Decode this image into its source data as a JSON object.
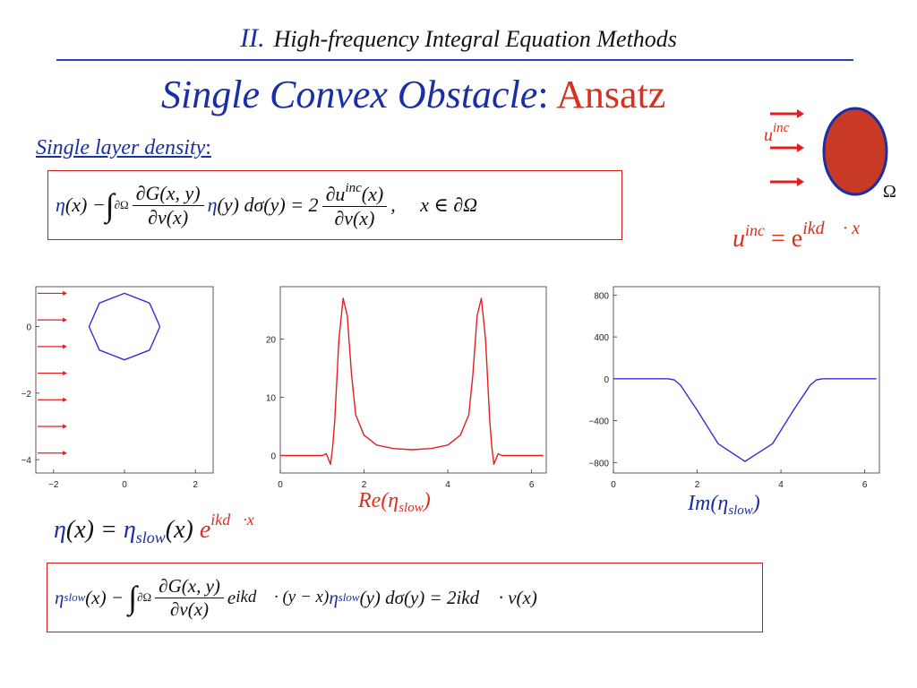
{
  "header": {
    "number": "II.",
    "title": "High-frequency Integral Equation Methods"
  },
  "title": {
    "part1": "Single Convex Obstacle",
    "colon": ":",
    "part2": "Ansatz"
  },
  "subtitle": "Single layer density",
  "subtitle_colon": ":",
  "equation1": {
    "eta": "η",
    "lhs_arg": "(x) − ",
    "int_sub": "∂Ω",
    "frac1_num": "∂G(x, y)",
    "frac1_den": "∂ν(x)",
    "eta2": "η",
    "mid": "(y) dσ(y) = 2",
    "frac2_num": "∂u",
    "frac2_num_sup": "inc",
    "frac2_num_tail": "(x)",
    "frac2_den": "∂ν(x)",
    "tail": ",     x ∈ ∂Ω"
  },
  "diagram": {
    "u_label": "u",
    "u_sup": "inc",
    "omega": "Ω",
    "formula_lhs": "u",
    "formula_lhs_sup": "inc",
    "formula_eq": " = e",
    "formula_exp": "ikd⃗ · x",
    "obstacle_fill": "#c83a25",
    "obstacle_stroke": "#1a2fa6"
  },
  "chart_data": [
    {
      "type": "line",
      "series": [
        {
          "values": [
            [
              1,
              0
            ],
            [
              0.707,
              0.707
            ],
            [
              0,
              1
            ],
            [
              -0.707,
              0.707
            ],
            [
              -1,
              0
            ],
            [
              -0.707,
              -0.707
            ],
            [
              0,
              -1
            ],
            [
              0.707,
              -0.707
            ],
            [
              1,
              0
            ]
          ]
        }
      ],
      "xlim": [
        -2.5,
        2.5
      ],
      "ylim": [
        -4.4,
        1.2
      ],
      "xticks": [
        "−2",
        "0",
        "2"
      ],
      "xtick_values": [
        -2,
        0,
        2
      ],
      "yticks": [
        "0",
        "−2",
        "−4"
      ],
      "ytick_values": [
        0,
        -2,
        -4
      ],
      "arrows_y": [
        1,
        0.2,
        -0.6,
        -1.4,
        -2.2,
        -3.0,
        -3.8
      ],
      "arrow_color": "#e02020",
      "line_color": "#3030d8"
    },
    {
      "type": "line",
      "title": "Re(η_slow)",
      "series": [
        {
          "values": [
            [
              0,
              0
            ],
            [
              1.0,
              0
            ],
            [
              1.1,
              0.3
            ],
            [
              1.2,
              -1.5
            ],
            [
              1.25,
              1.5
            ],
            [
              1.3,
              6
            ],
            [
              1.4,
              20
            ],
            [
              1.5,
              27
            ],
            [
              1.6,
              24
            ],
            [
              1.7,
              14
            ],
            [
              1.8,
              7
            ],
            [
              2.0,
              3.5
            ],
            [
              2.3,
              1.8
            ],
            [
              2.7,
              1.2
            ],
            [
              3.14,
              1.0
            ],
            [
              3.6,
              1.2
            ],
            [
              4.0,
              1.8
            ],
            [
              4.3,
              3.5
            ],
            [
              4.5,
              7
            ],
            [
              4.6,
              14
            ],
            [
              4.7,
              24
            ],
            [
              4.8,
              27
            ],
            [
              4.9,
              20
            ],
            [
              5.0,
              6
            ],
            [
              5.05,
              1.5
            ],
            [
              5.1,
              -1.5
            ],
            [
              5.2,
              0.3
            ],
            [
              5.3,
              0
            ],
            [
              6.28,
              0
            ]
          ]
        }
      ],
      "xlim": [
        0,
        6.35
      ],
      "ylim": [
        -3,
        29
      ],
      "xticks": [
        "0",
        "2",
        "4",
        "6"
      ],
      "xtick_values": [
        0,
        2,
        4,
        6
      ],
      "yticks": [
        "0",
        "10",
        "20"
      ],
      "ytick_values": [
        0,
        10,
        20
      ],
      "line_color": "#e02020"
    },
    {
      "type": "line",
      "title": "Im(η_slow)",
      "series": [
        {
          "values": [
            [
              0,
              0
            ],
            [
              1.3,
              0
            ],
            [
              1.45,
              -10
            ],
            [
              1.6,
              -60
            ],
            [
              2.0,
              -300
            ],
            [
              2.5,
              -620
            ],
            [
              3.14,
              -790
            ],
            [
              3.8,
              -620
            ],
            [
              4.3,
              -300
            ],
            [
              4.7,
              -60
            ],
            [
              4.85,
              -10
            ],
            [
              5.0,
              0
            ],
            [
              6.28,
              0
            ]
          ]
        }
      ],
      "xlim": [
        0,
        6.35
      ],
      "ylim": [
        -900,
        880
      ],
      "xticks": [
        "0",
        "2",
        "4",
        "6"
      ],
      "xtick_values": [
        0,
        2,
        4,
        6
      ],
      "yticks": [
        "800",
        "400",
        "0",
        "−400",
        "−800"
      ],
      "ytick_values": [
        800,
        400,
        0,
        -400,
        -800
      ],
      "line_color": "#3030d8"
    }
  ],
  "captions": {
    "re_prefix": "Re(η",
    "re_sub": "slow",
    "re_suffix": ")",
    "im_prefix": "Im(η",
    "im_sub": "slow",
    "im_suffix": ")"
  },
  "equation2": {
    "eta": "η",
    "lhs": "(x) = ",
    "eta_slow": "η",
    "slow": "slow",
    "arg": "(x) ",
    "exp_base": "e",
    "exp": "ikd⃗·x"
  },
  "equation3": {
    "eta": "η",
    "slow": "slow",
    "lhs_arg": "(x) − ",
    "int_sub": "∂Ω",
    "frac_num": "∂G(x, y)",
    "frac_den": "∂ν(x)",
    "exp_base": "e",
    "exp": "ikd⃗ · (y − x)",
    "eta2": "η",
    "slow2": "slow",
    "tail": "(y) dσ(y) = 2ikd⃗ · ν(x)"
  }
}
